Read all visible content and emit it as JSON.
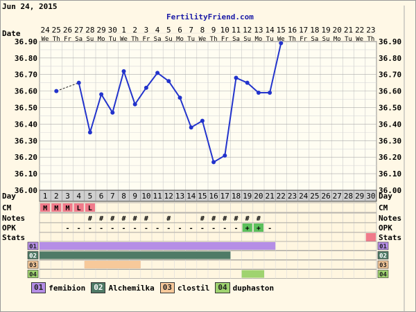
{
  "header": {
    "date": "Jun 24, 2015",
    "site": "FertilityFriend.com"
  },
  "labels": {
    "date": "Date",
    "day": "Day",
    "cm": "CM",
    "notes": "Notes",
    "opk": "OPK",
    "stats": "Stats"
  },
  "chart_data": {
    "type": "line",
    "dates": [
      "24",
      "25",
      "26",
      "27",
      "28",
      "29",
      "30",
      "1",
      "2",
      "3",
      "4",
      "5",
      "6",
      "7",
      "8",
      "9",
      "10",
      "11",
      "12",
      "13",
      "14",
      "15",
      "16",
      "17",
      "18",
      "19",
      "20",
      "21",
      "22",
      "23"
    ],
    "weekdays": [
      "We",
      "Th",
      "Fr",
      "Sa",
      "Su",
      "Mo",
      "Tu",
      "We",
      "Th",
      "Fr",
      "Sa",
      "Su",
      "Mo",
      "Tu",
      "We",
      "Th",
      "Fr",
      "Sa",
      "Su",
      "Mo",
      "Tu",
      "We",
      "Th",
      "Fr",
      "Sa",
      "Su",
      "Mo",
      "Tu",
      "We",
      "Th"
    ],
    "cycle_days": [
      1,
      2,
      3,
      4,
      5,
      6,
      7,
      8,
      9,
      10,
      11,
      12,
      13,
      14,
      15,
      16,
      17,
      18,
      19,
      20,
      21,
      22,
      23,
      24,
      25,
      26,
      27,
      28,
      29,
      30
    ],
    "temps": [
      null,
      36.6,
      null,
      36.65,
      36.35,
      36.58,
      36.47,
      36.72,
      36.52,
      36.62,
      36.71,
      36.66,
      36.56,
      36.38,
      36.42,
      36.17,
      36.21,
      36.68,
      36.65,
      36.59,
      36.59,
      36.89,
      null,
      null,
      null,
      null,
      null,
      null,
      null,
      null
    ],
    "dashed_segments": [
      [
        2,
        4
      ]
    ],
    "y_ticks": [
      "36.00",
      "36.10",
      "36.20",
      "36.30",
      "36.40",
      "36.50",
      "36.60",
      "36.70",
      "36.80",
      "36.90"
    ],
    "ylim": [
      36.0,
      36.95
    ],
    "cm": [
      [
        "M",
        "M",
        "M",
        "L",
        "L"
      ]
    ],
    "cm_color": "#f07a8a",
    "notes": [
      "",
      "",
      "",
      "",
      "#",
      "#",
      "#",
      "#",
      "#",
      "#",
      "",
      "#",
      "",
      "",
      "#",
      "#",
      "#",
      "#",
      "#",
      "#",
      "",
      "",
      "",
      "",
      "",
      "",
      "",
      "",
      "",
      ""
    ],
    "opk": [
      "",
      "",
      "-",
      "-",
      "-",
      "-",
      "-",
      "-",
      "-",
      "-",
      "-",
      "-",
      "-",
      "-",
      "-",
      "-",
      "-",
      "-",
      "+",
      "+",
      "-",
      "",
      "",
      "",
      "",
      "",
      "",
      "",
      "",
      ""
    ],
    "opk_positive_color": "#5cc05c",
    "stats_marker_day": 30,
    "stats_color": "#f07a8a",
    "med_rows": [
      {
        "code": "01",
        "color": "#b58ee6",
        "start": 1,
        "end": 21
      },
      {
        "code": "02",
        "color": "#4f7a66",
        "start": 1,
        "end": 17
      },
      {
        "code": "03",
        "color": "#f7c99a",
        "start": 5,
        "end": 9
      },
      {
        "code": "04",
        "color": "#9fd36f",
        "start": 19,
        "end": 20
      }
    ],
    "line_color": "#2233cc"
  },
  "legend": [
    {
      "code": "01",
      "name": "femibion",
      "color": "#b58ee6"
    },
    {
      "code": "02",
      "name": "Alchemilka",
      "color": "#4f7a66"
    },
    {
      "code": "03",
      "name": "clostil",
      "color": "#f7c99a"
    },
    {
      "code": "04",
      "name": "duphaston",
      "color": "#9fd36f"
    }
  ]
}
